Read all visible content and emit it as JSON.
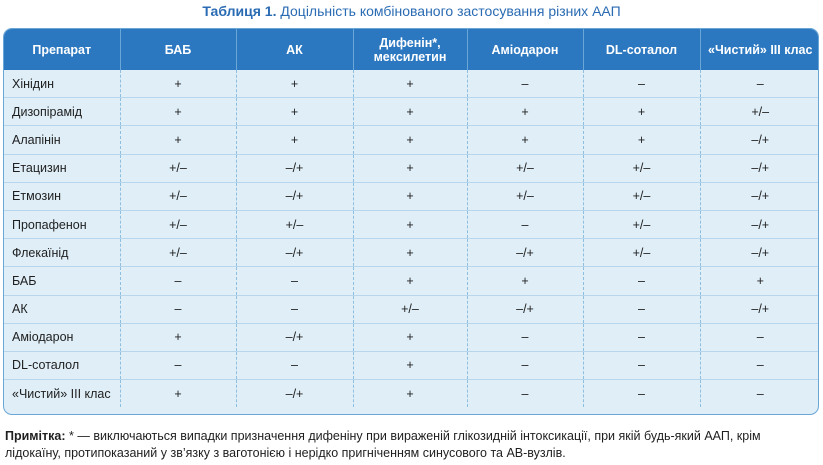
{
  "title": {
    "label": "Таблиця 1.",
    "text": "Доцільність комбінованого застосування різних ААП"
  },
  "headers": [
    [
      "Препарат"
    ],
    [
      "БАБ"
    ],
    [
      "АК"
    ],
    [
      "Дифенін*,",
      "мексилетин"
    ],
    [
      "Аміодарон"
    ],
    [
      "DL-соталол"
    ],
    [
      "«Чистий» III клас"
    ]
  ],
  "rows": [
    [
      "Хінідин",
      "+",
      "+",
      "+",
      "–",
      "–",
      "–"
    ],
    [
      "Дизопірамід",
      "+",
      "+",
      "+",
      "+",
      "+",
      "+/–"
    ],
    [
      "Алапінін",
      "+",
      "+",
      "+",
      "+",
      "+",
      "–/+"
    ],
    [
      "Етацизин",
      "+/–",
      "–/+",
      "+",
      "+/–",
      "+/–",
      "–/+"
    ],
    [
      "Етмозин",
      "+/–",
      "–/+",
      "+",
      "+/–",
      "+/–",
      "–/+"
    ],
    [
      "Пропафенон",
      "+/–",
      "+/–",
      "+",
      "–",
      "+/–",
      "–/+"
    ],
    [
      "Флекаїнід",
      "+/–",
      "–/+",
      "+",
      "–/+",
      "+/–",
      "–/+"
    ],
    [
      "БАБ",
      "–",
      "–",
      "+",
      "+",
      "–",
      "+"
    ],
    [
      "АК",
      "–",
      "–",
      "+/–",
      "–/+",
      "–",
      "–/+"
    ],
    [
      "Аміодарон",
      "+",
      "–/+",
      "+",
      "–",
      "–",
      "–"
    ],
    [
      "DL-соталол",
      "–",
      "–",
      "+",
      "–",
      "–",
      "–"
    ],
    [
      "«Чистий» III клас",
      "+",
      "–/+",
      "+",
      "–",
      "–",
      "–"
    ]
  ],
  "note": {
    "label": "Примітка:",
    "text": "* — виключаються випадки призначення дифеніну при вираженій глікозидній інтоксикації, при якій будь-який ААП, крім лідокаїну, протипоказаний у зв’язку з ваготонією і нерідко пригніченням синусового та АВ-вузлів."
  }
}
